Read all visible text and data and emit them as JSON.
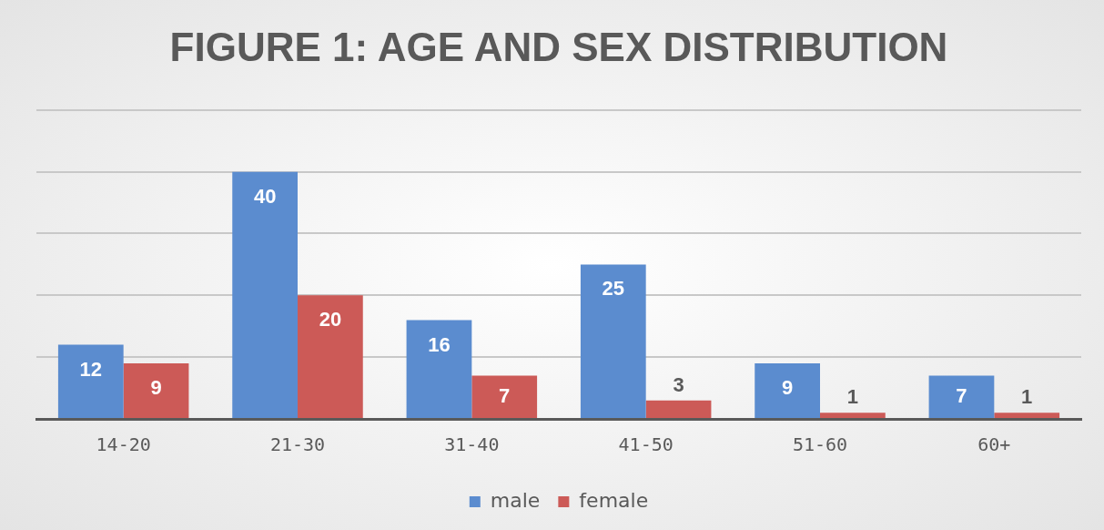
{
  "chart_data": {
    "type": "bar",
    "title": "FIGURE 1: AGE AND SEX DISTRIBUTION",
    "categories": [
      "14-20",
      "21-30",
      "31-40",
      "41-50",
      "51-60",
      "60+"
    ],
    "series": [
      {
        "name": "male",
        "color": "#5b8ccf",
        "values": [
          12,
          40,
          16,
          25,
          9,
          7
        ]
      },
      {
        "name": "female",
        "color": "#cc5a57",
        "values": [
          9,
          20,
          7,
          3,
          1,
          1
        ]
      }
    ],
    "ylim": [
      0,
      50
    ],
    "yticks": [
      {
        "value": 0,
        "label": null
      },
      {
        "value": 10,
        "label": null
      },
      {
        "value": 20,
        "label": null
      },
      {
        "value": 30,
        "label": null
      },
      {
        "value": 40,
        "label": null
      },
      {
        "value": 50,
        "label": null
      }
    ],
    "tick_labels": "x",
    "grid": "y",
    "legend": "bottom",
    "data_labels": true
  }
}
